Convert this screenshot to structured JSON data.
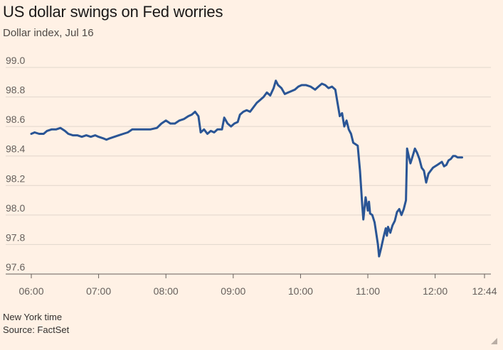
{
  "chart_data": {
    "type": "line",
    "title": "US dollar swings on Fed worries",
    "subtitle": "Dollar index, Jul 16",
    "xlabel": "",
    "ylabel": "",
    "xlim": [
      0,
      404
    ],
    "ylim": [
      97.6,
      99.0
    ],
    "x_ticks": [
      {
        "label": "06:00",
        "value": 0
      },
      {
        "label": "07:00",
        "value": 60
      },
      {
        "label": "08:00",
        "value": 120
      },
      {
        "label": "09:00",
        "value": 180
      },
      {
        "label": "10:00",
        "value": 240
      },
      {
        "label": "11:00",
        "value": 300
      },
      {
        "label": "12:00",
        "value": 360
      },
      {
        "label": "12:44",
        "value": 404
      }
    ],
    "y_ticks": [
      {
        "label": "99.0",
        "value": 99.0
      },
      {
        "label": "98.8",
        "value": 98.8
      },
      {
        "label": "98.6",
        "value": 98.6
      },
      {
        "label": "98.4",
        "value": 98.4
      },
      {
        "label": "98.2",
        "value": 98.2
      },
      {
        "label": "98.0",
        "value": 98.0
      },
      {
        "label": "97.8",
        "value": 97.8
      },
      {
        "label": "97.6",
        "value": 97.6
      }
    ],
    "series": [
      {
        "name": "Dollar index",
        "color": "#2a5595",
        "points": [
          [
            0,
            98.55
          ],
          [
            3,
            98.56
          ],
          [
            7,
            98.55
          ],
          [
            11,
            98.55
          ],
          [
            14,
            98.57
          ],
          [
            18,
            98.58
          ],
          [
            22,
            98.58
          ],
          [
            26,
            98.59
          ],
          [
            30,
            98.57
          ],
          [
            33,
            98.55
          ],
          [
            37,
            98.54
          ],
          [
            41,
            98.54
          ],
          [
            45,
            98.53
          ],
          [
            49,
            98.54
          ],
          [
            53,
            98.53
          ],
          [
            57,
            98.54
          ],
          [
            60,
            98.53
          ],
          [
            64,
            98.52
          ],
          [
            67,
            98.51
          ],
          [
            70,
            98.52
          ],
          [
            74,
            98.53
          ],
          [
            78,
            98.54
          ],
          [
            82,
            98.55
          ],
          [
            86,
            98.56
          ],
          [
            90,
            98.58
          ],
          [
            94,
            98.58
          ],
          [
            100,
            98.58
          ],
          [
            106,
            98.58
          ],
          [
            112,
            98.59
          ],
          [
            116,
            98.62
          ],
          [
            120,
            98.64
          ],
          [
            124,
            98.62
          ],
          [
            128,
            98.62
          ],
          [
            132,
            98.64
          ],
          [
            136,
            98.65
          ],
          [
            140,
            98.67
          ],
          [
            143,
            98.68
          ],
          [
            146,
            98.7
          ],
          [
            149,
            98.67
          ],
          [
            151,
            98.56
          ],
          [
            154,
            98.58
          ],
          [
            157,
            98.55
          ],
          [
            160,
            98.57
          ],
          [
            163,
            98.56
          ],
          [
            166,
            98.58
          ],
          [
            170,
            98.58
          ],
          [
            172,
            98.66
          ],
          [
            175,
            98.62
          ],
          [
            178,
            98.6
          ],
          [
            181,
            98.62
          ],
          [
            184,
            98.63
          ],
          [
            186,
            98.68
          ],
          [
            189,
            98.7
          ],
          [
            192,
            98.71
          ],
          [
            195,
            98.7
          ],
          [
            198,
            98.73
          ],
          [
            201,
            98.76
          ],
          [
            204,
            98.78
          ],
          [
            207,
            98.8
          ],
          [
            210,
            98.83
          ],
          [
            213,
            98.81
          ],
          [
            216,
            98.86
          ],
          [
            218,
            98.91
          ],
          [
            220,
            98.88
          ],
          [
            223,
            98.86
          ],
          [
            226,
            98.82
          ],
          [
            229,
            98.83
          ],
          [
            232,
            98.84
          ],
          [
            235,
            98.85
          ],
          [
            238,
            98.87
          ],
          [
            241,
            98.88
          ],
          [
            245,
            98.88
          ],
          [
            249,
            98.87
          ],
          [
            253,
            98.85
          ],
          [
            256,
            98.87
          ],
          [
            259,
            98.89
          ],
          [
            262,
            98.88
          ],
          [
            265,
            98.86
          ],
          [
            268,
            98.87
          ],
          [
            271,
            98.85
          ],
          [
            273,
            98.76
          ],
          [
            275,
            98.67
          ],
          [
            277,
            98.69
          ],
          [
            279,
            98.6
          ],
          [
            281,
            98.64
          ],
          [
            283,
            98.58
          ],
          [
            285,
            98.55
          ],
          [
            287,
            98.49
          ],
          [
            289,
            98.48
          ],
          [
            291,
            98.47
          ],
          [
            293,
            98.3
          ],
          [
            295,
            98.07
          ],
          [
            296,
            97.97
          ],
          [
            298,
            98.12
          ],
          [
            300,
            98.03
          ],
          [
            301,
            98.09
          ],
          [
            302,
            98.01
          ],
          [
            304,
            98.0
          ],
          [
            306,
            97.95
          ],
          [
            307,
            97.9
          ],
          [
            309,
            97.8
          ],
          [
            310,
            97.72
          ],
          [
            312,
            97.78
          ],
          [
            314,
            97.85
          ],
          [
            316,
            97.91
          ],
          [
            317,
            97.86
          ],
          [
            318,
            97.92
          ],
          [
            320,
            97.88
          ],
          [
            322,
            97.93
          ],
          [
            324,
            97.96
          ],
          [
            326,
            98.02
          ],
          [
            328,
            98.04
          ],
          [
            330,
            98.0
          ],
          [
            332,
            98.04
          ],
          [
            334,
            98.1
          ],
          [
            335,
            98.45
          ],
          [
            337,
            98.38
          ],
          [
            338,
            98.35
          ],
          [
            340,
            98.4
          ],
          [
            342,
            98.45
          ],
          [
            344,
            98.42
          ],
          [
            346,
            98.38
          ],
          [
            348,
            98.32
          ],
          [
            350,
            98.3
          ],
          [
            352,
            98.22
          ],
          [
            354,
            98.28
          ],
          [
            356,
            98.3
          ],
          [
            358,
            98.32
          ],
          [
            360,
            98.33
          ],
          [
            362,
            98.34
          ],
          [
            364,
            98.35
          ],
          [
            366,
            98.36
          ],
          [
            368,
            98.33
          ],
          [
            370,
            98.34
          ],
          [
            372,
            98.37
          ],
          [
            374,
            98.38
          ],
          [
            376,
            98.4
          ],
          [
            378,
            98.4
          ],
          [
            380,
            98.39
          ],
          [
            382,
            98.39
          ],
          [
            384,
            98.39
          ]
        ]
      }
    ]
  },
  "footer": {
    "note": "New York time",
    "source": "Source: FactSet"
  },
  "colors": {
    "background": "#fff1e5",
    "line": "#2a5595",
    "grid": "#e1d6cc",
    "axis": "#66605c"
  }
}
